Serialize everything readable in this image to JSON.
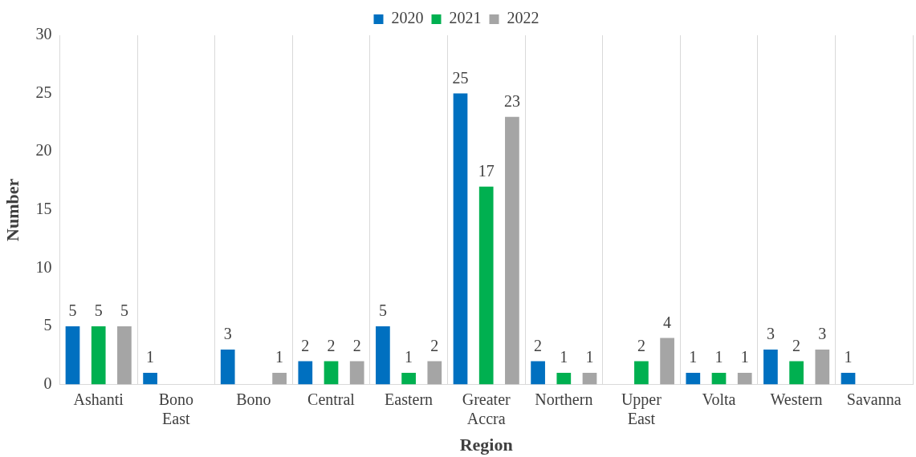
{
  "chart_data": {
    "type": "bar",
    "xlabel": "Region",
    "ylabel": "Number",
    "categories": [
      "Ashanti",
      "Bono East",
      "Bono",
      "Central",
      "Eastern",
      "Greater Accra",
      "Northern",
      "Upper East",
      "Volta",
      "Western",
      "Savanna"
    ],
    "series": [
      {
        "name": "2020",
        "color": "#0070c0",
        "values": [
          5,
          1,
          3,
          2,
          5,
          25,
          2,
          null,
          1,
          3,
          1
        ]
      },
      {
        "name": "2021",
        "color": "#00b050",
        "values": [
          5,
          null,
          null,
          2,
          1,
          17,
          1,
          2,
          1,
          2,
          null
        ]
      },
      {
        "name": "2022",
        "color": "#a5a5a5",
        "values": [
          5,
          null,
          1,
          2,
          2,
          23,
          1,
          4,
          1,
          3,
          null
        ]
      }
    ],
    "ylim": [
      0,
      30
    ],
    "yticks": [
      0,
      5,
      10,
      15,
      20,
      25,
      30
    ],
    "grid": "x",
    "legend": "top",
    "data_labels": true
  }
}
